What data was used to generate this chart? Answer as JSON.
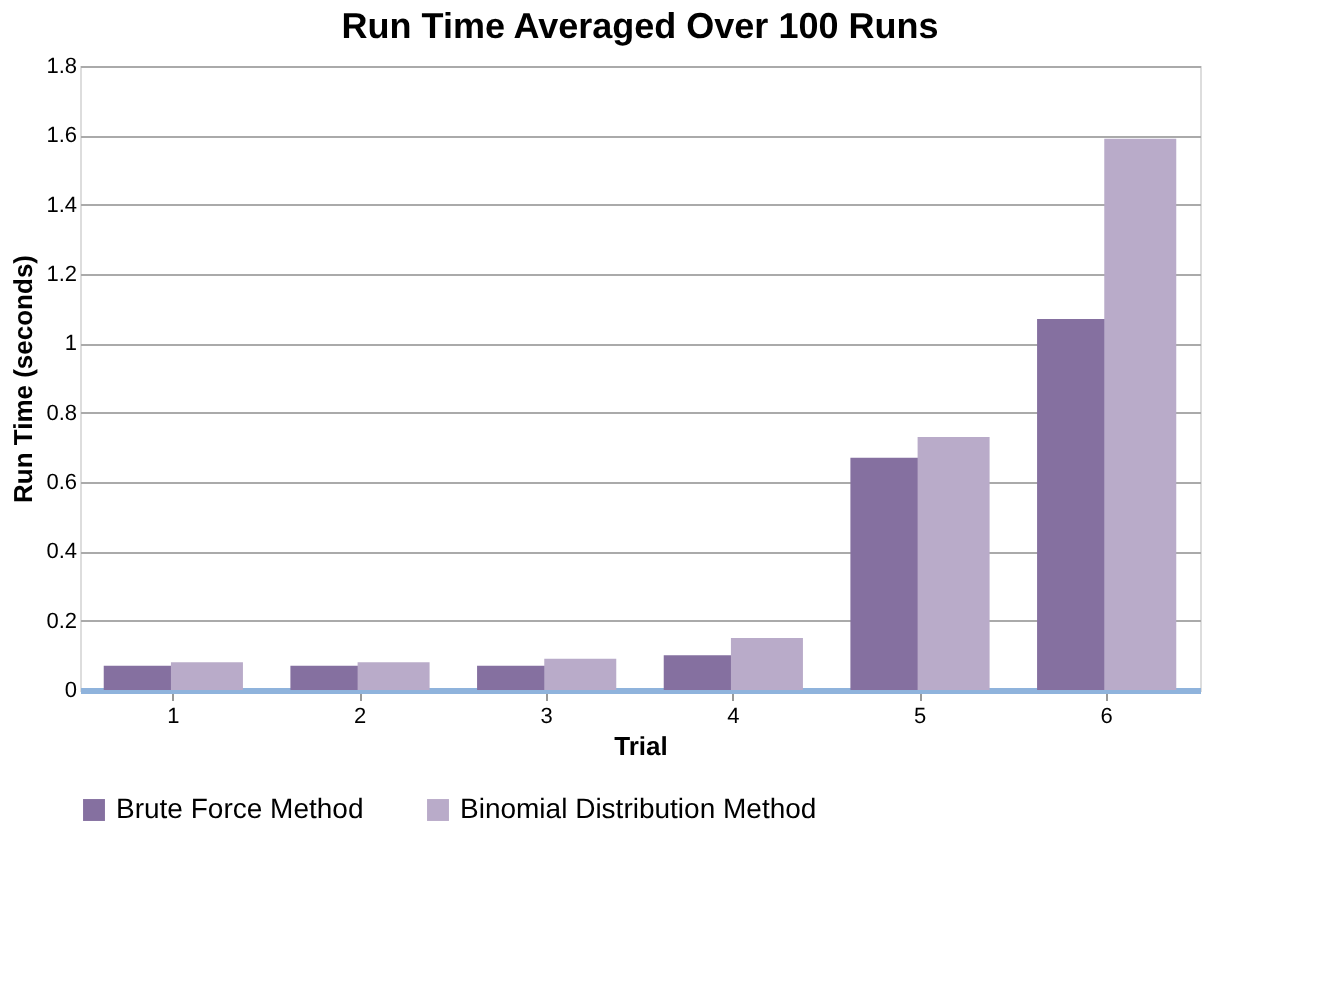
{
  "chart_data": {
    "type": "bar",
    "title": "Run Time Averaged Over 100 Runs",
    "xlabel": "Trial",
    "ylabel": "Run Time (seconds)",
    "categories": [
      "1",
      "2",
      "3",
      "4",
      "5",
      "6"
    ],
    "series": [
      {
        "name": "Brute Force Method",
        "color": "#8570a0",
        "values": [
          0.07,
          0.07,
          0.07,
          0.1,
          0.67,
          1.07
        ]
      },
      {
        "name": "Binomial Distribution Method",
        "color": "#b9abc9",
        "values": [
          0.08,
          0.08,
          0.09,
          0.15,
          0.73,
          1.59
        ]
      }
    ],
    "ylim": [
      0,
      1.8
    ],
    "yticks": [
      0,
      0.2,
      0.4,
      0.6,
      0.8,
      1,
      1.2,
      1.4,
      1.6,
      1.8
    ],
    "grid": "y",
    "legend": "bottom"
  }
}
